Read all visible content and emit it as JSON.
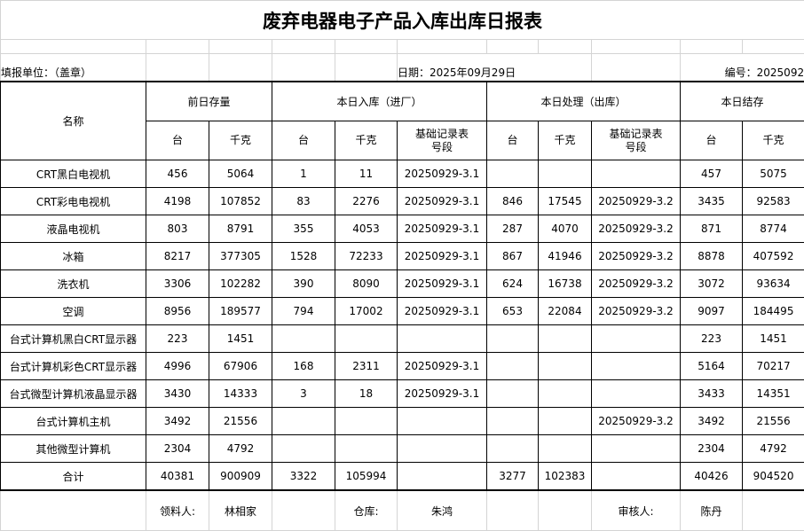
{
  "title": "废弃电器电子产品入库出库日报表",
  "info": {
    "unit_label": "填报单位：（盖章）",
    "date_label": "日期：2025年09月29日",
    "number_label": "编号：2025092"
  },
  "headers": {
    "name": "名称",
    "groups": [
      "前日存量",
      "本日入库（进厂）",
      "本日处理（出库）",
      "本日结存"
    ],
    "sub": {
      "units": "台",
      "kg": "千克",
      "record_line1": "基础记录表",
      "record_line2": "号段"
    }
  },
  "rows": [
    [
      "CRT黑白电视机",
      "456",
      "5064",
      "1",
      "11",
      "20250929-3.1",
      "",
      "",
      "",
      "457",
      "5075"
    ],
    [
      "CRT彩电电视机",
      "4198",
      "107852",
      "83",
      "2276",
      "20250929-3.1",
      "846",
      "17545",
      "20250929-3.2",
      "3435",
      "92583"
    ],
    [
      "液晶电视机",
      "803",
      "8791",
      "355",
      "4053",
      "20250929-3.1",
      "287",
      "4070",
      "20250929-3.2",
      "871",
      "8774"
    ],
    [
      "冰箱",
      "8217",
      "377305",
      "1528",
      "72233",
      "20250929-3.1",
      "867",
      "41946",
      "20250929-3.2",
      "8878",
      "407592"
    ],
    [
      "洗衣机",
      "3306",
      "102282",
      "390",
      "8090",
      "20250929-3.1",
      "624",
      "16738",
      "20250929-3.2",
      "3072",
      "93634"
    ],
    [
      "空调",
      "8956",
      "189577",
      "794",
      "17002",
      "20250929-3.1",
      "653",
      "22084",
      "20250929-3.2",
      "9097",
      "184495"
    ],
    [
      "台式计算机黑白CRT显示器",
      "223",
      "1451",
      "",
      "",
      "",
      "",
      "",
      "",
      "223",
      "1451"
    ],
    [
      "台式计算机彩色CRT显示器",
      "4996",
      "67906",
      "168",
      "2311",
      "20250929-3.1",
      "",
      "",
      "",
      "5164",
      "70217"
    ],
    [
      "台式微型计算机液晶显示器",
      "3430",
      "14333",
      "3",
      "18",
      "20250929-3.1",
      "",
      "",
      "",
      "3433",
      "14351"
    ],
    [
      "台式计算机主机",
      "3492",
      "21556",
      "",
      "",
      "",
      "",
      "",
      "20250929-3.2",
      "3492",
      "21556"
    ],
    [
      "其他微型计算机",
      "2304",
      "4792",
      "",
      "",
      "",
      "",
      "",
      "",
      "2304",
      "4792"
    ]
  ],
  "total": [
    "合计",
    "40381",
    "900909",
    "3322",
    "105994",
    "",
    "3277",
    "102383",
    "",
    "40426",
    "904520"
  ],
  "footer": {
    "receiver_label": "领料人:",
    "receiver": "林相家",
    "warehouse_label": "仓库:",
    "warehouse": "朱鸿",
    "reviewer_label": "审核人:",
    "reviewer": "陈丹"
  }
}
